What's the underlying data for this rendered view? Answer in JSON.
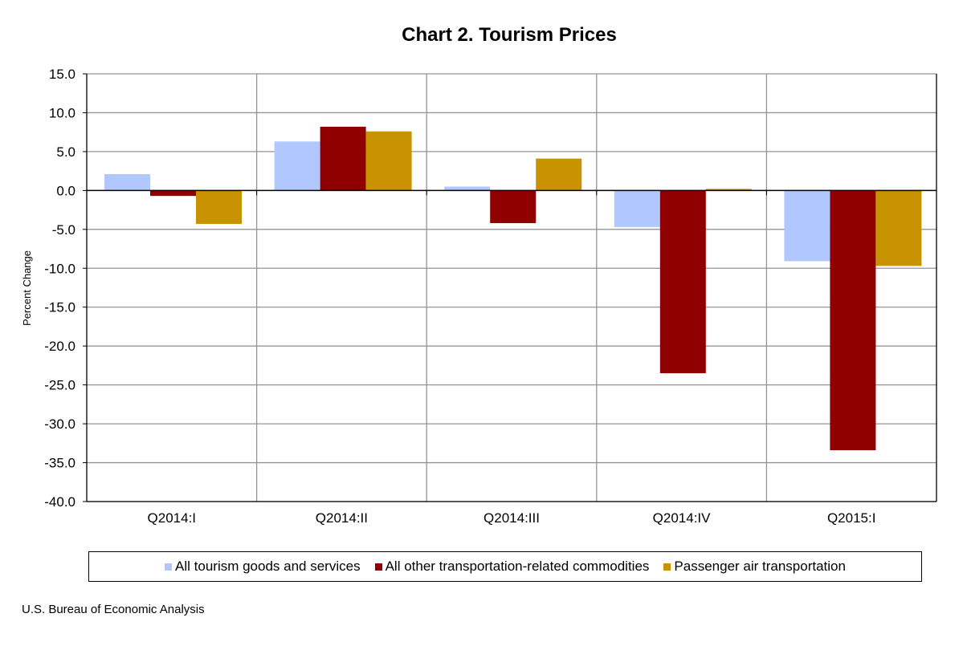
{
  "chart_data": {
    "type": "bar",
    "title": "Chart 2. Tourism Prices",
    "xlabel": "",
    "ylabel": "Percent Change",
    "ylim": [
      -40,
      15
    ],
    "yticks": [
      "15.0",
      "10.0",
      "5.0",
      "0.0",
      "-5.0",
      "-10.0",
      "-15.0",
      "-20.0",
      "-25.0",
      "-30.0",
      "-35.0",
      "-40.0"
    ],
    "grid": true,
    "legend_position": "bottom",
    "categories": [
      "Q2014:I",
      "Q2014:II",
      "Q2014:III",
      "Q2014:IV",
      "Q2015:I"
    ],
    "series": [
      {
        "name": "All tourism goods and services",
        "color": "#b0c8ff",
        "values": [
          2.1,
          6.3,
          0.5,
          -4.7,
          -9.1
        ]
      },
      {
        "name": "All other transportation-related commodities",
        "color": "#900000",
        "values": [
          -0.7,
          8.2,
          -4.2,
          -23.5,
          -33.4
        ]
      },
      {
        "name": "Passenger air transportation",
        "color": "#c89200",
        "values": [
          -4.3,
          7.6,
          4.1,
          0.2,
          -9.7
        ]
      }
    ]
  },
  "source": "U.S. Bureau of Economic Analysis"
}
